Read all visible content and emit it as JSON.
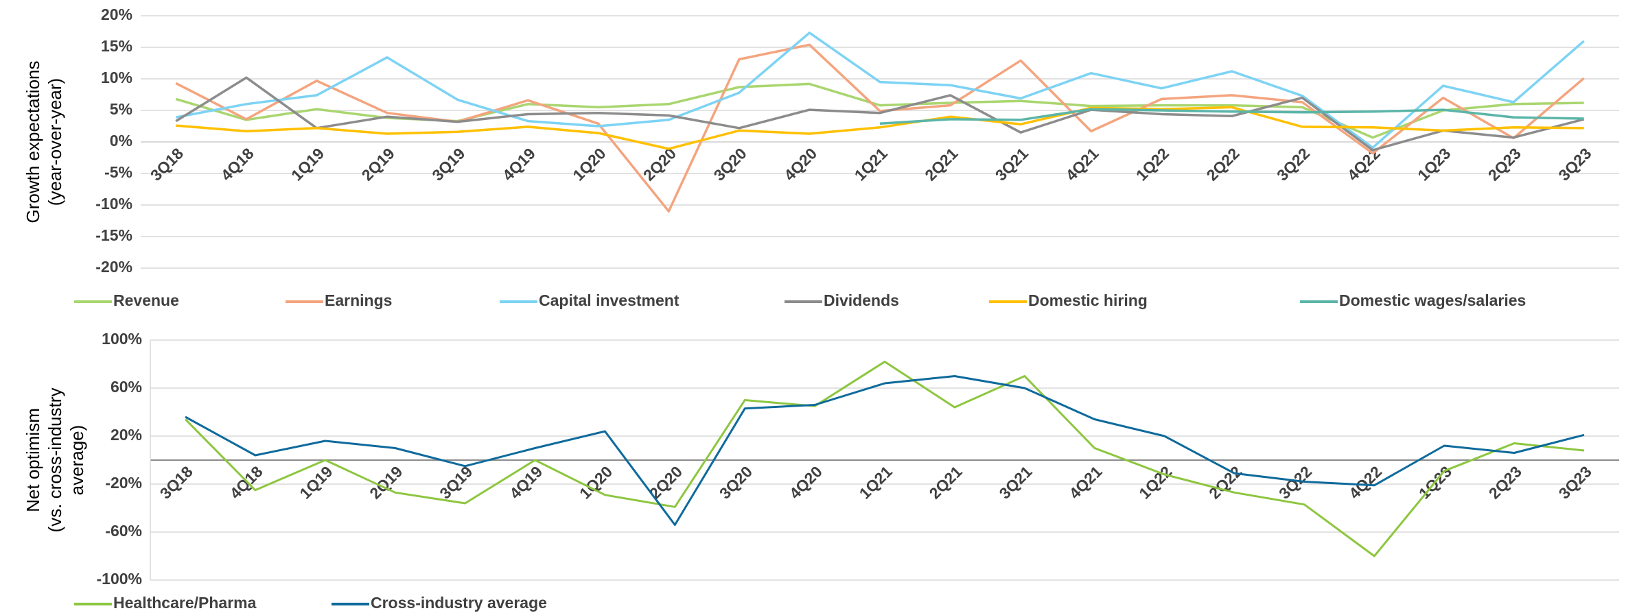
{
  "chart_data": [
    {
      "type": "line",
      "y_label": [
        "Growth expectations",
        "(year-over-year)"
      ],
      "categories": [
        "3Q18",
        "4Q18",
        "1Q19",
        "2Q19",
        "3Q19",
        "4Q19",
        "1Q20",
        "2Q20",
        "3Q20",
        "4Q20",
        "1Q21",
        "2Q21",
        "3Q21",
        "4Q21",
        "1Q22",
        "2Q22",
        "3Q22",
        "4Q22",
        "1Q23",
        "2Q23",
        "3Q23"
      ],
      "ylim": [
        -20,
        20
      ],
      "yticks": [
        {
          "value": -20,
          "label": "-20%"
        },
        {
          "value": -15,
          "label": "-15%"
        },
        {
          "value": -10,
          "label": "-10%"
        },
        {
          "value": -5,
          "label": "-5%"
        },
        {
          "value": 0,
          "label": "0%"
        },
        {
          "value": 5,
          "label": "5%"
        },
        {
          "value": 10,
          "label": "10%"
        },
        {
          "value": 15,
          "label": "15%"
        },
        {
          "value": 20,
          "label": "20%"
        }
      ],
      "grid": true,
      "series": [
        {
          "name": "Revenue",
          "color": "#a9d66f",
          "values": [
            6.8,
            3.5,
            5.2,
            3.8,
            3.3,
            6.0,
            5.5,
            6.0,
            8.7,
            9.2,
            5.8,
            6.2,
            6.5,
            5.7,
            5.8,
            5.8,
            5.5,
            0.7,
            5.0,
            6.0,
            6.2
          ]
        },
        {
          "name": "Earnings",
          "color": "#f4a47e",
          "values": [
            9.3,
            3.6,
            9.7,
            4.6,
            3.2,
            6.6,
            2.9,
            -11,
            13.1,
            15.4,
            4.9,
            5.8,
            12.9,
            1.7,
            6.8,
            7.4,
            6.3,
            -1.8,
            7.0,
            0.6,
            10.1
          ]
        },
        {
          "name": "Capital investment",
          "color": "#7dd3f4",
          "values": [
            3.9,
            6.0,
            7.4,
            13.4,
            6.7,
            3.3,
            2.5,
            3.5,
            7.8,
            17.3,
            9.5,
            9.0,
            6.9,
            10.9,
            8.5,
            11.2,
            7.3,
            -0.9,
            8.9,
            6.3,
            16.0
          ]
        },
        {
          "name": "Dividends",
          "color": "#8c8c8c",
          "values": [
            3.3,
            10.2,
            2.2,
            4.0,
            3.2,
            4.4,
            4.6,
            4.2,
            2.2,
            5.1,
            4.6,
            7.4,
            1.5,
            5.1,
            4.4,
            4.1,
            7.0,
            -1.3,
            1.8,
            0.7,
            3.6
          ]
        },
        {
          "name": "Domestic hiring",
          "color": "#ffc000",
          "values": [
            2.6,
            1.7,
            2.2,
            1.3,
            1.6,
            2.4,
            1.4,
            -1.1,
            1.8,
            1.3,
            2.3,
            4.0,
            2.8,
            5.4,
            5.2,
            5.5,
            2.4,
            2.3,
            1.8,
            2.3,
            2.2
          ]
        },
        {
          "name": "Domestic wages/salaries",
          "color": "#5bb5a8",
          "values": [
            null,
            null,
            null,
            null,
            null,
            null,
            null,
            null,
            null,
            null,
            2.9,
            3.6,
            3.5,
            5.2,
            5.0,
            4.8,
            4.7,
            4.8,
            5.1,
            3.9,
            3.7
          ]
        }
      ]
    },
    {
      "type": "line",
      "y_label": [
        "Net optimism",
        "(vs. cross-industry",
        "average)"
      ],
      "categories": [
        "3Q18",
        "4Q18",
        "1Q19",
        "2Q19",
        "3Q19",
        "4Q19",
        "1Q20",
        "2Q20",
        "3Q20",
        "4Q20",
        "1Q21",
        "2Q21",
        "3Q21",
        "4Q21",
        "1Q22",
        "2Q22",
        "3Q22",
        "4Q22",
        "1Q23",
        "2Q23",
        "3Q23"
      ],
      "ylim": [
        -100,
        100
      ],
      "yticks": [
        {
          "value": -100,
          "label": "-100%"
        },
        {
          "value": -60,
          "label": "-60%"
        },
        {
          "value": -20,
          "label": "-20%"
        },
        {
          "value": 20,
          "label": "20%"
        },
        {
          "value": 60,
          "label": "60%"
        },
        {
          "value": 100,
          "label": "100%"
        }
      ],
      "grid": true,
      "series": [
        {
          "name": "Healthcare/Pharma",
          "color": "#8dc63f",
          "values": [
            34,
            -25,
            0,
            -27,
            -36,
            0,
            -29,
            -39,
            50,
            45,
            82,
            44,
            70,
            10,
            -12,
            -27,
            -37,
            -80,
            -9,
            14,
            8
          ]
        },
        {
          "name": "Cross-industry average",
          "color": "#0e6a9c",
          "values": [
            36,
            4,
            16,
            10,
            -5,
            10,
            24,
            -54,
            43,
            46,
            64,
            70,
            60,
            34,
            20,
            -11,
            -18,
            -21,
            12,
            6,
            21
          ]
        }
      ]
    }
  ]
}
